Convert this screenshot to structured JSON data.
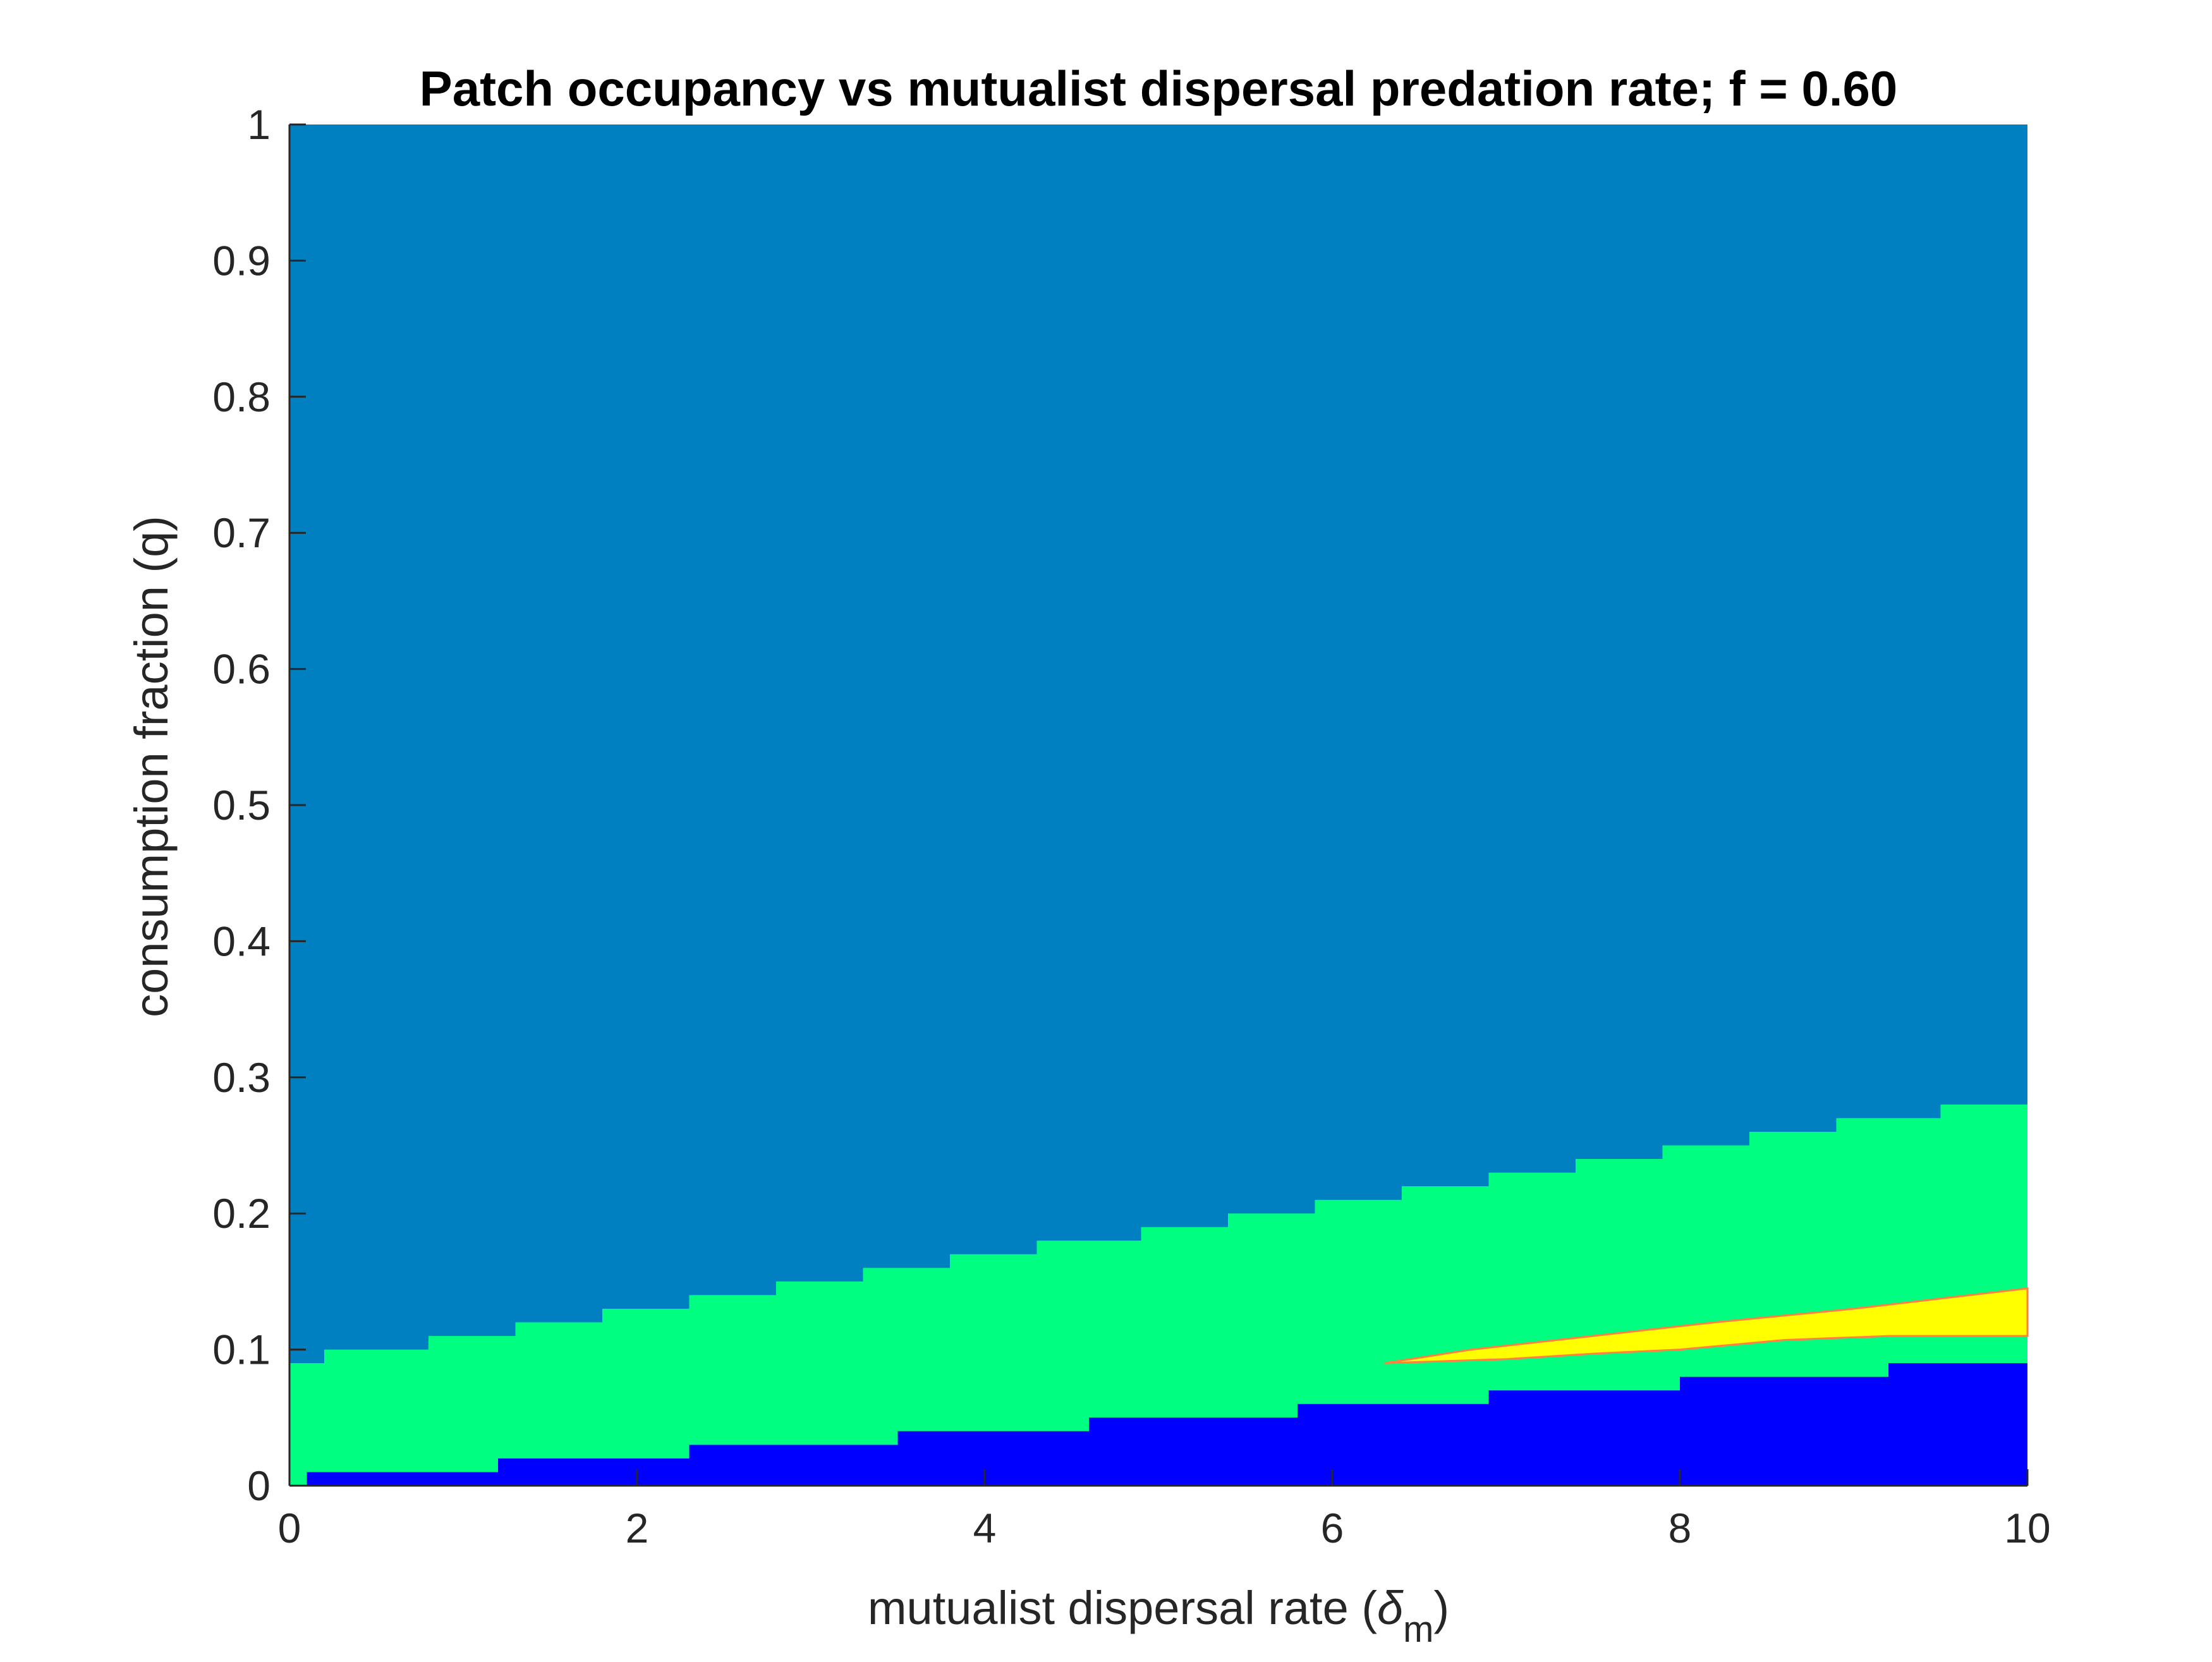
{
  "chart_data": {
    "type": "heatmap",
    "title": "Patch occupancy vs mutualist dispersal predation rate; f = 0.60",
    "xlabel": {
      "text": "mutualist dispersal rate (",
      "symbol": "δ",
      "subscript": "m",
      "close": ")"
    },
    "ylabel": "consumption fraction (q)",
    "xlim": [
      0,
      10
    ],
    "ylim": [
      0,
      1
    ],
    "x_ticks": [
      0,
      2,
      4,
      6,
      8,
      10
    ],
    "x_tick_labels": [
      "0",
      "2",
      "4",
      "6",
      "8",
      "10"
    ],
    "y_ticks": [
      0,
      0.1,
      0.2,
      0.3,
      0.4,
      0.5,
      0.6,
      0.7,
      0.8,
      0.9,
      1
    ],
    "y_tick_labels": [
      "0",
      "0.1",
      "0.2",
      "0.3",
      "0.4",
      "0.5",
      "0.6",
      "0.7",
      "0.8",
      "0.9",
      "1"
    ],
    "colors": {
      "upper_region": "#0080c0",
      "middle_region": "#00ff80",
      "lower_region": "#0000ff",
      "wedge_region": "#ffff00",
      "wedge_edge": "#ff8040"
    },
    "regions": [
      {
        "name": "upper-region",
        "color_key": "upper_region",
        "y_from": "boundary_top",
        "y_to": 1
      },
      {
        "name": "middle-region",
        "color_key": "middle_region",
        "boundary_top": [
          [
            0,
            0.09
          ],
          [
            0.2,
            0.1
          ],
          [
            0.8,
            0.11
          ],
          [
            1.3,
            0.12
          ],
          [
            1.8,
            0.13
          ],
          [
            2.3,
            0.14
          ],
          [
            2.8,
            0.15
          ],
          [
            3.3,
            0.16
          ],
          [
            3.8,
            0.17
          ],
          [
            4.3,
            0.18
          ],
          [
            4.9,
            0.19
          ],
          [
            5.4,
            0.2
          ],
          [
            5.9,
            0.21
          ],
          [
            6.4,
            0.22
          ],
          [
            6.9,
            0.23
          ],
          [
            7.4,
            0.24
          ],
          [
            7.9,
            0.25
          ],
          [
            8.4,
            0.26
          ],
          [
            8.9,
            0.27
          ],
          [
            9.5,
            0.28
          ],
          [
            10,
            0.28
          ]
        ],
        "boundary_bottom": [
          [
            0,
            0
          ],
          [
            0.1,
            0.01
          ],
          [
            1.2,
            0.02
          ],
          [
            2.3,
            0.03
          ],
          [
            3.5,
            0.04
          ],
          [
            4.6,
            0.05
          ],
          [
            5.8,
            0.06
          ],
          [
            6.9,
            0.07
          ],
          [
            8.0,
            0.08
          ],
          [
            9.2,
            0.09
          ],
          [
            10,
            0.09
          ]
        ]
      },
      {
        "name": "lower-region",
        "color_key": "lower_region",
        "y_from": 0,
        "y_to": "middle_boundary_bottom"
      },
      {
        "name": "wedge-region",
        "color_key": "wedge_region",
        "upper_edge": [
          [
            6.3,
            0.09
          ],
          [
            6.8,
            0.1
          ],
          [
            7.5,
            0.11
          ],
          [
            8.2,
            0.12
          ],
          [
            9.0,
            0.13
          ],
          [
            10,
            0.145
          ]
        ],
        "lower_edge": [
          [
            10,
            0.11
          ],
          [
            9.2,
            0.11
          ],
          [
            8.6,
            0.107
          ],
          [
            8.0,
            0.1
          ],
          [
            7.5,
            0.097
          ],
          [
            7.0,
            0.093
          ],
          [
            6.3,
            0.09
          ]
        ]
      }
    ]
  }
}
